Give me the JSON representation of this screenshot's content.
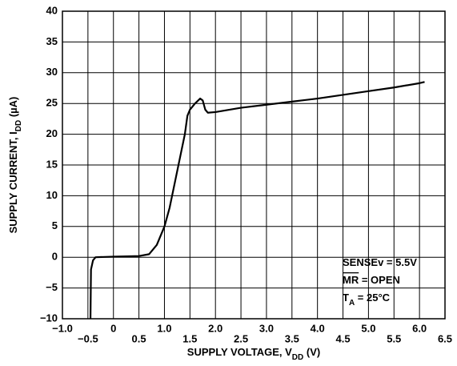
{
  "chart_data": {
    "type": "line",
    "x_label": {
      "text": "SUPPLY VOLTAGE, V",
      "sub": "DD",
      "suffix": " (V)"
    },
    "y_label": {
      "text": "SUPPLY CURRENT, I",
      "sub": "DD",
      "suffix": " (µA)"
    },
    "annotations": [
      {
        "text": "SENSEv = 5.5V"
      },
      {
        "text": "MR",
        "overline": true,
        "suffix": " = OPEN"
      },
      {
        "text": "T",
        "sub": "A",
        "suffix": " = 25°C"
      }
    ],
    "xlim": [
      -1,
      6.5
    ],
    "ylim": [
      -10,
      40
    ],
    "xticks": [
      {
        "value": -1,
        "label": "−1.0"
      },
      {
        "value": -0.5,
        "label": "−0.5"
      },
      0,
      0.5,
      {
        "value": 1,
        "label": "1.0"
      },
      1.5,
      {
        "value": 2,
        "label": "2.0"
      },
      2.5,
      {
        "value": 3,
        "label": "3.0"
      },
      3.5,
      {
        "value": 4,
        "label": "4.0"
      },
      4.5,
      {
        "value": 5,
        "label": "5.0"
      },
      5.5,
      {
        "value": 6,
        "label": "6.0"
      },
      6.5
    ],
    "yticks": [
      {
        "value": -10,
        "label": "−10"
      },
      {
        "value": -5,
        "label": "−5"
      },
      0,
      5,
      10,
      15,
      20,
      25,
      30,
      35,
      40
    ],
    "grid": true,
    "series": [
      {
        "color": "#000000",
        "x": [
          -0.45,
          -0.44,
          -0.4,
          -0.35,
          0,
          0.5,
          0.7,
          0.85,
          1.0,
          1.1,
          1.2,
          1.3,
          1.4,
          1.45,
          1.5,
          1.6,
          1.7,
          1.75,
          1.8,
          1.85,
          2.0,
          2.5,
          3.0,
          3.5,
          4.0,
          4.5,
          5.0,
          5.5,
          6.0,
          6.1
        ],
        "values": [
          -10,
          -2,
          -0.5,
          0,
          0.1,
          0.2,
          0.5,
          2,
          5,
          8,
          12,
          16,
          20,
          23,
          24,
          25,
          25.8,
          25.5,
          24,
          23.5,
          23.6,
          24.3,
          24.8,
          25.3,
          25.8,
          26.4,
          27,
          27.6,
          28.3,
          28.5
        ]
      }
    ]
  }
}
